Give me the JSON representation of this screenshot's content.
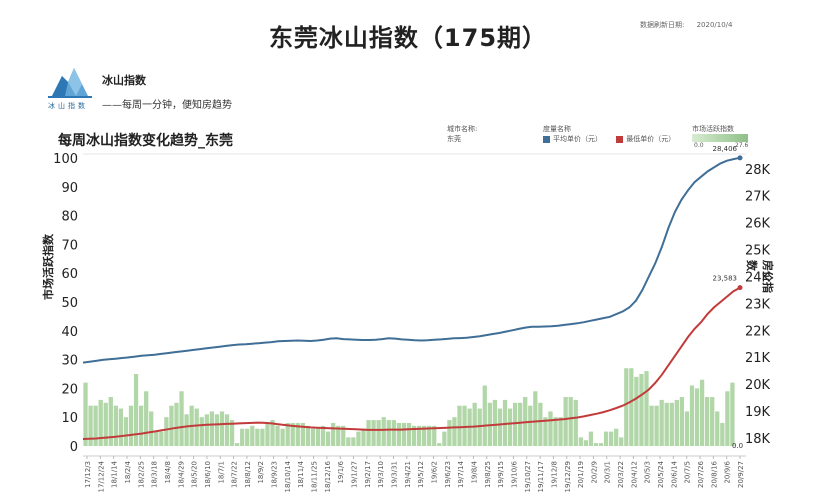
{
  "header": {
    "title": "东莞冰山指数（175期）",
    "refresh_label": "数据刷新日期:",
    "refresh_date": "2020/10/4"
  },
  "brand": {
    "name": "冰山指数",
    "slogan": "——每周一分钟，便知房趋势",
    "logo_caption": "冰山指数"
  },
  "chart_title": "每周冰山指数变化趋势_东莞",
  "filters": {
    "city_label": "城市名称:",
    "city_value": "东莞",
    "series_label": "度量名称",
    "activity_label": "市场活跃指数",
    "activity_min": "0.0",
    "activity_max": "27.6"
  },
  "colors": {
    "avg_price": "#3f6e96",
    "min_price": "#c23b3b",
    "activity": "#a9d29f"
  },
  "chart_data": {
    "type": "bar+line",
    "x_ticks": [
      "17/12/3",
      "17/12/24",
      "18/1/14",
      "18/2/4",
      "18/2/25",
      "18/3/18",
      "18/4/8",
      "18/4/29",
      "18/5/20",
      "18/6/10",
      "18/7/1",
      "18/7/22",
      "18/8/12",
      "18/9/2",
      "18/9/23",
      "18/10/14",
      "18/11/4",
      "18/11/25",
      "18/12/16",
      "19/1/6",
      "19/1/27",
      "19/2/17",
      "19/3/10",
      "19/3/31",
      "19/4/21",
      "19/5/12",
      "19/6/2",
      "19/6/23",
      "19/7/14",
      "19/8/4",
      "19/8/25",
      "19/9/15",
      "19/10/6",
      "19/10/27",
      "19/11/17",
      "19/12/8",
      "19/12/29",
      "20/1/19",
      "20/2/9",
      "20/3/1",
      "20/3/22",
      "20/4/12",
      "20/5/3",
      "20/5/24",
      "20/6/14",
      "20/7/5",
      "20/7/26",
      "20/8/16",
      "20/9/6",
      "20/9/27"
    ],
    "x_tick_labels": [
      "17/12/3",
      "17/12/24",
      "18/1/14",
      "18/2/4",
      "18/2/25",
      "18/3/18",
      "18/4/8",
      "18/4/29",
      "18/5/20",
      "18/6/10",
      "18/7/1",
      "18/7/22",
      "18/8/12",
      "18/9/2",
      "18/9/23",
      "18/10/14",
      "18/11/4",
      "18/11/25",
      "18/12/16",
      "19/1/6",
      "19/1/27",
      "19/2/17",
      "19/3/10",
      "19/3/31",
      "19/4/21",
      "19/5/12",
      "19/6/2",
      "19/6/23",
      "19/7/14",
      "19/8/4",
      "19/8/25",
      "19/9/15",
      "19/10/6",
      "19/10/27",
      "19/11/17",
      "19/12/8",
      "19/12/29",
      "20/1/19",
      "20/2/9",
      "20/3/1",
      "20/3/22",
      "20/4/12",
      "20/5/3",
      "20/5/24",
      "20/6/14",
      "20/7/5",
      "20/7/26",
      "20/8/16",
      "20/9/6",
      "20/9/27"
    ],
    "left_axis": {
      "label": "市场活跃指数",
      "ylim": [
        0,
        100
      ],
      "ticks": [
        0,
        10,
        20,
        30,
        40,
        50,
        60,
        70,
        80,
        90,
        100
      ]
    },
    "right_axis": {
      "label": "房价指数",
      "ylim": [
        17700,
        28400
      ],
      "ticks": [
        "18K",
        "19K",
        "20K",
        "21K",
        "22K",
        "23K",
        "24K",
        "25K",
        "26K",
        "27K",
        "28K"
      ],
      "tick_values": [
        18000,
        19000,
        20000,
        21000,
        22000,
        23000,
        24000,
        25000,
        26000,
        27000,
        28000
      ]
    },
    "series": [
      {
        "name": "平均单价（元）",
        "axis": "right",
        "values": [
          20800,
          20830,
          20860,
          20900,
          20920,
          20940,
          20970,
          20990,
          21020,
          21050,
          21070,
          21090,
          21120,
          21150,
          21180,
          21210,
          21240,
          21270,
          21300,
          21330,
          21360,
          21390,
          21420,
          21450,
          21470,
          21480,
          21500,
          21520,
          21540,
          21560,
          21590,
          21600,
          21610,
          21620,
          21610,
          21600,
          21620,
          21650,
          21690,
          21700,
          21670,
          21660,
          21650,
          21640,
          21640,
          21650,
          21670,
          21700,
          21690,
          21660,
          21650,
          21630,
          21620,
          21630,
          21650,
          21660,
          21680,
          21700,
          21710,
          21720,
          21750,
          21780,
          21820,
          21860,
          21900,
          21950,
          22000,
          22050,
          22100,
          22130,
          22130,
          22140,
          22150,
          22170,
          22200,
          22230,
          22260,
          22300,
          22350,
          22400,
          22450,
          22500,
          22600,
          22700,
          22850,
          23100,
          23500,
          24000,
          24500,
          25100,
          25800,
          26400,
          26850,
          27200,
          27500,
          27700,
          27900,
          28050,
          28200,
          28300,
          28360,
          28406
        ]
      },
      {
        "name": "最低单价（元）",
        "axis": "right",
        "values": [
          17960,
          17970,
          17980,
          18000,
          18020,
          18040,
          18070,
          18100,
          18130,
          18160,
          18200,
          18240,
          18280,
          18320,
          18360,
          18400,
          18430,
          18450,
          18470,
          18490,
          18500,
          18510,
          18520,
          18530,
          18540,
          18550,
          18560,
          18570,
          18560,
          18540,
          18510,
          18480,
          18450,
          18430,
          18410,
          18390,
          18380,
          18370,
          18360,
          18350,
          18340,
          18330,
          18320,
          18310,
          18300,
          18300,
          18300,
          18310,
          18310,
          18310,
          18320,
          18330,
          18340,
          18350,
          18360,
          18370,
          18380,
          18390,
          18400,
          18410,
          18420,
          18440,
          18460,
          18480,
          18500,
          18520,
          18540,
          18560,
          18580,
          18600,
          18620,
          18640,
          18660,
          18680,
          18700,
          18730,
          18760,
          18800,
          18850,
          18900,
          18960,
          19030,
          19110,
          19200,
          19320,
          19460,
          19620,
          19800,
          20050,
          20350,
          20700,
          21050,
          21400,
          21750,
          22050,
          22300,
          22600,
          22850,
          23050,
          23250,
          23450,
          23583
        ]
      },
      {
        "name": "市场活跃指数",
        "axis": "left",
        "type": "bar",
        "values": [
          22,
          14,
          14,
          16,
          15,
          17,
          14,
          13,
          10,
          14,
          25,
          14,
          19,
          12,
          5,
          5,
          10,
          14,
          15,
          19,
          11,
          14,
          13,
          10,
          11,
          12,
          11,
          12,
          11,
          9,
          1,
          6,
          6,
          7,
          6,
          6,
          8,
          9,
          7,
          6,
          8,
          8,
          8,
          8,
          7,
          6,
          6,
          7,
          5,
          8,
          7,
          7,
          3,
          3,
          5,
          6,
          9,
          9,
          9,
          10,
          9,
          9,
          8,
          8,
          8,
          7,
          7,
          7,
          7,
          7,
          1,
          5,
          9,
          10,
          14,
          14,
          13,
          15,
          13,
          21,
          15,
          16,
          13,
          16,
          13,
          15,
          15,
          17,
          14,
          19,
          15,
          10,
          12,
          10,
          10,
          17,
          17,
          16,
          3,
          2,
          5,
          1,
          1,
          5,
          5,
          6,
          3,
          27,
          27,
          24,
          25,
          26,
          14,
          14,
          16,
          15,
          15,
          16,
          17,
          12,
          21,
          20,
          23,
          17,
          17,
          12,
          8,
          19,
          22,
          0
        ]
      }
    ],
    "annotations": [
      {
        "series": "平均单价（元）",
        "text": "28,406"
      },
      {
        "series": "最低单价（元）",
        "text": "23,583"
      },
      {
        "series": "市场活跃指数",
        "text": "0.0"
      }
    ]
  }
}
